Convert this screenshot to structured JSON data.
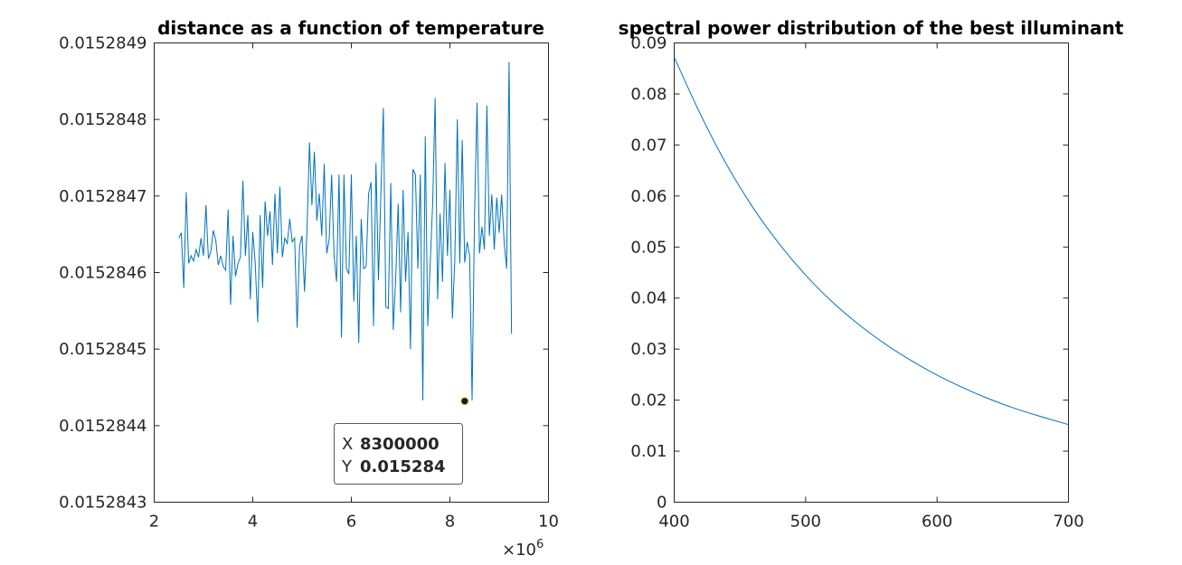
{
  "colors": {
    "line": "#0072bd",
    "axis": "#262626",
    "datatip_value": "#0a8ee8"
  },
  "chart_data": [
    {
      "type": "line",
      "title": "distance as a function of temperature",
      "xlabel": "",
      "ylabel": "",
      "xlim": [
        2,
        10
      ],
      "ylim": [
        0.0152843,
        0.0152849
      ],
      "x_exponent_label": "×10",
      "x_exponent": "6",
      "x_ticks": [
        "2",
        "4",
        "6",
        "8",
        "10"
      ],
      "y_ticks": [
        "0.0152843",
        "0.0152844",
        "0.0152845",
        "0.0152846",
        "0.0152847",
        "0.0152848",
        "0.0152849"
      ],
      "series": [
        {
          "x_start": 2.5,
          "x_step": 0.05,
          "values": [
            1.5284645,
            1.5284652,
            1.528458,
            1.5284705,
            1.5284612,
            1.5284622,
            1.5284615,
            1.528463,
            1.528462,
            1.5284645,
            1.5284622,
            1.5284688,
            1.5284618,
            1.5284628,
            1.5284655,
            1.5284642,
            1.528461,
            1.5284622,
            1.5284608,
            1.5284603,
            1.5284682,
            1.5284558,
            1.5284648,
            1.5284595,
            1.5284612,
            1.528462,
            1.528472,
            1.5284622,
            1.5284675,
            1.5284565,
            1.5284653,
            1.5284612,
            1.5284535,
            1.5284675,
            1.528458,
            1.5284693,
            1.5284648,
            1.528468,
            1.528461,
            1.5284703,
            1.5284625,
            1.5284712,
            1.528462,
            1.5284645,
            1.5284638,
            1.528467,
            1.528464,
            1.5284645,
            1.5284528,
            1.5284635,
            1.5284648,
            1.5284575,
            1.5284655,
            1.528477,
            1.5284688,
            1.5284758,
            1.5284668,
            1.5284703,
            1.5284648,
            1.5284742,
            1.5284625,
            1.5284643,
            1.5284728,
            1.5284622,
            1.5284588,
            1.5284728,
            1.5284515,
            1.5284728,
            1.5284605,
            1.5284598,
            1.5284728,
            1.5284562,
            1.5284648,
            1.5284508,
            1.528467,
            1.5284605,
            1.5284608,
            1.5284703,
            1.5284718,
            1.528453,
            1.5284743,
            1.528459,
            1.5284705,
            1.5284815,
            1.5284555,
            1.5284553,
            1.5284717,
            1.5284525,
            1.5284592,
            1.528469,
            1.5284548,
            1.5284708,
            1.5284588,
            1.5284653,
            1.52845,
            1.5284735,
            1.5284728,
            1.5284605,
            1.5284728,
            1.5284433,
            1.5284778,
            1.528453,
            1.5284612,
            1.528469,
            1.5284828,
            1.5284565,
            1.5284677,
            1.5284588,
            1.5284743,
            1.5284622,
            1.5284708,
            1.528454,
            1.5284618,
            1.52848,
            1.5284612,
            1.5284773,
            1.5284613,
            1.528464,
            1.5284622,
            1.5284433,
            1.5284678,
            1.5284822,
            1.5284625,
            1.528466,
            1.528463,
            1.5284818,
            1.5284648,
            1.5284702,
            1.528463,
            1.5284698,
            1.5284652,
            1.5284702,
            1.528464,
            1.5284605,
            1.5284875,
            1.528452
          ]
        }
      ],
      "datatip": {
        "x_key": "X",
        "x_value": "8300000",
        "y_key": "Y",
        "y_value": "0.015284",
        "x": 8.3,
        "y": 1.5284432
      }
    },
    {
      "type": "line",
      "title": "spectral power distribution of the best illuminant",
      "xlabel": "",
      "ylabel": "",
      "xlim": [
        400,
        700
      ],
      "ylim": [
        0,
        0.09
      ],
      "x_ticks": [
        "400",
        "500",
        "600",
        "700"
      ],
      "y_ticks": [
        "0",
        "0.01",
        "0.02",
        "0.03",
        "0.04",
        "0.05",
        "0.06",
        "0.07",
        "0.08",
        "0.09"
      ],
      "series": [
        {
          "x": [
            400,
            420,
            440,
            460,
            480,
            500,
            520,
            540,
            560,
            580,
            600,
            620,
            640,
            660,
            680,
            700
          ],
          "values": [
            0.0872,
            0.076,
            0.0661,
            0.0577,
            0.0506,
            0.0445,
            0.0393,
            0.0349,
            0.0311,
            0.0278,
            0.0249,
            0.0224,
            0.0202,
            0.0183,
            0.0167,
            0.0152
          ]
        }
      ]
    }
  ]
}
